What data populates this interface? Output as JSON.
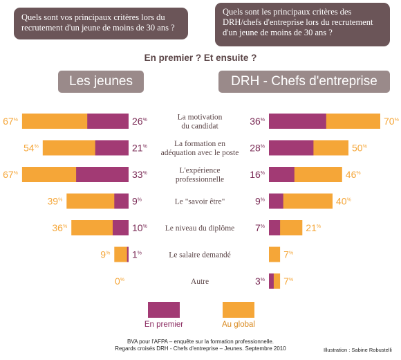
{
  "header": {
    "question_left": "Quels sont vos principaux critères lors du recrutement d'un jeune de moins de 30 ans ?",
    "question_right": "Quels sont les principaux critères des DRH/chefs d'entreprise lors du recrutement d'un jeune de moins de 30 ans ?",
    "subtitle": "En premier ? Et ensuite ?",
    "group_left": "Les jeunes",
    "group_right": "DRH - Chefs d'entreprise"
  },
  "footer": {
    "source_line1": "BVA pour l'AFPA – enquête sur la formation professionnelle.",
    "source_line2": "Regards croisés DRH - Chefs d'entreprise – Jeunes. Septembre 2010",
    "credit": "Illustration : Sabine Robustelli"
  },
  "chart_data": {
    "type": "bar",
    "categories": [
      [
        "La motivation",
        "du candidat"
      ],
      [
        "La formation en",
        "adéquation avec le poste"
      ],
      [
        "L'expérience",
        "professionnelle"
      ],
      [
        "Le \"savoir être\""
      ],
      [
        "Le niveau du diplôme"
      ],
      [
        "Le salaire demandé"
      ],
      [
        "Autre"
      ]
    ],
    "groups": [
      {
        "name": "Les jeunes",
        "series": [
          {
            "name": "En premier",
            "values": [
              26,
              21,
              33,
              9,
              10,
              1,
              0
            ],
            "color": "#a23a74"
          },
          {
            "name": "Au global",
            "values": [
              67,
              54,
              67,
              39,
              36,
              9,
              0
            ],
            "color": "#f5a638"
          }
        ]
      },
      {
        "name": "DRH - Chefs d'entreprise",
        "series": [
          {
            "name": "En premier",
            "values": [
              36,
              28,
              16,
              9,
              7,
              0,
              3
            ],
            "color": "#a23a74"
          },
          {
            "name": "Au global",
            "values": [
              70,
              50,
              46,
              40,
              21,
              7,
              7
            ],
            "color": "#f5a638"
          }
        ]
      }
    ],
    "unit": "%",
    "legend": [
      {
        "name": "En premier",
        "color": "#a23a74"
      },
      {
        "name": "Au global",
        "color": "#f5a638"
      }
    ],
    "legend_position": "bottom"
  }
}
